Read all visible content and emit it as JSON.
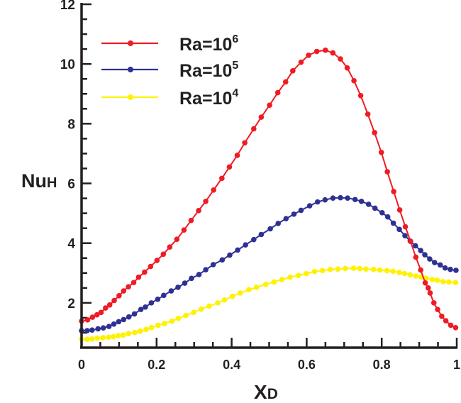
{
  "chart_data": {
    "type": "line",
    "title": "",
    "xlabel": "X",
    "xlabel_sub": "D",
    "ylabel": "Nu",
    "ylabel_sub": "H",
    "xlim": [
      0,
      1
    ],
    "ylim": [
      0.5,
      12
    ],
    "xticks": [
      0,
      0.2,
      0.4,
      0.6,
      0.8,
      1
    ],
    "xtick_labels": [
      "0",
      "0.2",
      "0.4",
      "0.6",
      "0.8",
      "1"
    ],
    "xminor_step": 0.05,
    "yticks": [
      2,
      4,
      6,
      8,
      10,
      12
    ],
    "ytick_labels": [
      "2",
      "4",
      "6",
      "8",
      "10",
      "12"
    ],
    "yminor_step": 0.5,
    "grid": false,
    "legend_position": "top-left",
    "series": [
      {
        "name": "Ra=10^6",
        "label_base": "Ra=10",
        "label_exp": "6",
        "color": "#ee1c24",
        "x": [
          0,
          0.016,
          0.029,
          0.041,
          0.052,
          0.064,
          0.075,
          0.087,
          0.1,
          0.112,
          0.125,
          0.139,
          0.152,
          0.168,
          0.184,
          0.201,
          0.218,
          0.235,
          0.254,
          0.273,
          0.292,
          0.312,
          0.331,
          0.352,
          0.374,
          0.394,
          0.415,
          0.435,
          0.459,
          0.479,
          0.501,
          0.523,
          0.544,
          0.563,
          0.585,
          0.605,
          0.627,
          0.65,
          0.67,
          0.69,
          0.708,
          0.726,
          0.744,
          0.763,
          0.781,
          0.799,
          0.815,
          0.832,
          0.848,
          0.863,
          0.877,
          0.891,
          0.904,
          0.916,
          0.924,
          0.929,
          0.939,
          0.949,
          0.96,
          0.971,
          0.984,
          0.997
        ],
        "y": [
          1.39,
          1.43,
          1.52,
          1.6,
          1.68,
          1.83,
          1.93,
          2.08,
          2.24,
          2.4,
          2.54,
          2.68,
          2.86,
          3.03,
          3.22,
          3.42,
          3.63,
          3.87,
          4.13,
          4.44,
          4.76,
          5.09,
          5.4,
          5.78,
          6.17,
          6.55,
          6.94,
          7.36,
          7.83,
          8.22,
          8.62,
          9.04,
          9.4,
          9.77,
          10.06,
          10.29,
          10.42,
          10.46,
          10.37,
          10.17,
          9.87,
          9.44,
          8.94,
          8.32,
          7.7,
          7.04,
          6.39,
          5.73,
          5.11,
          4.55,
          4.06,
          3.53,
          3.1,
          2.67,
          2.5,
          2.33,
          2.0,
          1.78,
          1.55,
          1.4,
          1.25,
          1.17
        ]
      },
      {
        "name": "Ra=10^5",
        "label_base": "Ra=10",
        "label_exp": "5",
        "color": "#2e3192",
        "x": [
          0,
          0.015,
          0.028,
          0.044,
          0.058,
          0.073,
          0.086,
          0.099,
          0.112,
          0.126,
          0.141,
          0.158,
          0.17,
          0.186,
          0.203,
          0.219,
          0.239,
          0.257,
          0.275,
          0.293,
          0.313,
          0.331,
          0.351,
          0.375,
          0.395,
          0.416,
          0.437,
          0.459,
          0.479,
          0.503,
          0.524,
          0.545,
          0.566,
          0.585,
          0.608,
          0.629,
          0.649,
          0.67,
          0.69,
          0.709,
          0.729,
          0.746,
          0.765,
          0.782,
          0.801,
          0.816,
          0.831,
          0.847,
          0.862,
          0.876,
          0.89,
          0.904,
          0.915,
          0.928,
          0.941,
          0.956,
          0.969,
          0.983,
          0.998
        ],
        "y": [
          1.07,
          1.07,
          1.09,
          1.13,
          1.16,
          1.21,
          1.29,
          1.37,
          1.44,
          1.53,
          1.63,
          1.78,
          1.86,
          2.0,
          2.12,
          2.25,
          2.4,
          2.52,
          2.66,
          2.82,
          2.95,
          3.11,
          3.28,
          3.44,
          3.6,
          3.77,
          3.94,
          4.12,
          4.29,
          4.48,
          4.66,
          4.82,
          4.97,
          5.1,
          5.25,
          5.38,
          5.45,
          5.51,
          5.52,
          5.51,
          5.46,
          5.4,
          5.3,
          5.17,
          5.02,
          4.88,
          4.67,
          4.46,
          4.25,
          4.07,
          3.91,
          3.75,
          3.61,
          3.47,
          3.35,
          3.27,
          3.17,
          3.12,
          3.09
        ]
      },
      {
        "name": "Ra=10^4",
        "label_base": "Ra=10",
        "label_exp": "4",
        "color": "#fff200",
        "x": [
          0,
          0.015,
          0.028,
          0.042,
          0.057,
          0.072,
          0.085,
          0.098,
          0.111,
          0.125,
          0.142,
          0.156,
          0.172,
          0.186,
          0.204,
          0.221,
          0.241,
          0.258,
          0.278,
          0.299,
          0.319,
          0.34,
          0.363,
          0.381,
          0.402,
          0.423,
          0.446,
          0.466,
          0.491,
          0.513,
          0.534,
          0.556,
          0.578,
          0.599,
          0.621,
          0.642,
          0.663,
          0.683,
          0.703,
          0.725,
          0.741,
          0.758,
          0.778,
          0.795,
          0.814,
          0.83,
          0.847,
          0.861,
          0.876,
          0.891,
          0.905,
          0.918,
          0.935,
          0.948,
          0.964,
          0.979,
          0.997
        ],
        "y": [
          0.78,
          0.78,
          0.79,
          0.82,
          0.83,
          0.85,
          0.87,
          0.9,
          0.92,
          0.97,
          1.01,
          1.05,
          1.11,
          1.17,
          1.25,
          1.31,
          1.39,
          1.48,
          1.58,
          1.68,
          1.79,
          1.89,
          2.0,
          2.1,
          2.22,
          2.33,
          2.44,
          2.52,
          2.62,
          2.7,
          2.78,
          2.86,
          2.92,
          2.98,
          3.05,
          3.08,
          3.12,
          3.13,
          3.15,
          3.16,
          3.15,
          3.13,
          3.12,
          3.1,
          3.08,
          3.06,
          3.02,
          2.98,
          2.94,
          2.9,
          2.87,
          2.83,
          2.78,
          2.76,
          2.71,
          2.7,
          2.68
        ]
      }
    ]
  }
}
